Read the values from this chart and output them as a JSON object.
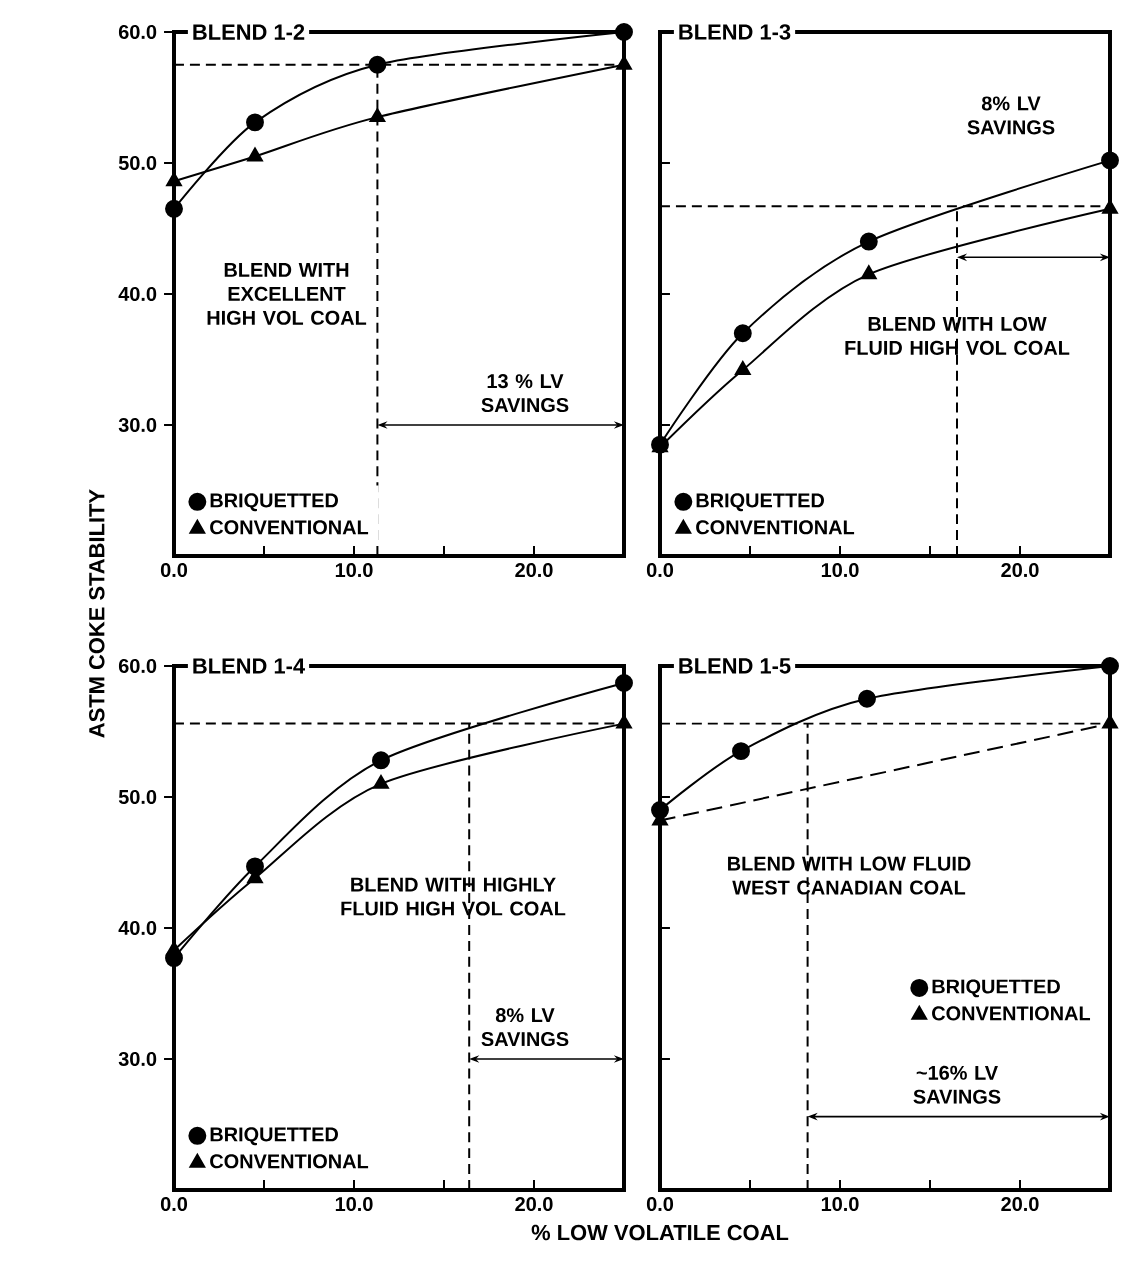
{
  "chart_data": [
    {
      "type": "line",
      "title": "BLEND 1-2",
      "x": [
        0,
        4.5,
        11.3,
        25
      ],
      "series": [
        {
          "name": "BRIQUETTED",
          "color": "#000000",
          "marker": "circle",
          "line_style": "solid",
          "values": [
            46.5,
            53.1,
            57.5,
            60
          ]
        },
        {
          "name": "CONVENTIONAL",
          "color": "#000000",
          "marker": "triangle",
          "line_style": "solid",
          "values": [
            48.6,
            50.5,
            53.5,
            57.5
          ]
        }
      ],
      "xlim": [
        0,
        25
      ],
      "ylim": [
        20,
        60
      ],
      "xticks": [
        {
          "value": 0,
          "label": "0.0"
        },
        {
          "value": 5,
          "label": null
        },
        {
          "value": 10,
          "label": "10.0"
        },
        {
          "value": 15,
          "label": null
        },
        {
          "value": 20,
          "label": "20.0"
        }
      ],
      "yticks": [
        {
          "value": 30,
          "label": "30.0"
        },
        {
          "value": 40,
          "label": "40.0"
        },
        {
          "value": 50,
          "label": "50.0"
        },
        {
          "value": 60,
          "label": "60.0"
        }
      ],
      "ref_lines": [
        {
          "axis": "y",
          "value": 57.5,
          "line_style": "dashed"
        },
        {
          "axis": "x",
          "value": 11.3,
          "line_style": "dashed"
        }
      ],
      "annotations": [
        "BLEND WITH EXCELLENT HIGH VOL COAL",
        "13 % LV SAVINGS"
      ],
      "legend": "bottom left"
    },
    {
      "type": "line",
      "title": "BLEND 1-3",
      "x": [
        0,
        4.6,
        11.6,
        25
      ],
      "series": [
        {
          "name": "BRIQUETTED",
          "color": "#000000",
          "marker": "circle",
          "line_style": "solid",
          "values": [
            28.5,
            37,
            44,
            50.2
          ]
        },
        {
          "name": "CONVENTIONAL",
          "color": "#000000",
          "marker": "triangle",
          "line_style": "solid",
          "values": [
            28.3,
            34.2,
            41.5,
            46.5
          ]
        }
      ],
      "xlim": [
        0,
        25
      ],
      "ylim": [
        20,
        60
      ],
      "xticks": [
        {
          "value": 0,
          "label": "0.0"
        },
        {
          "value": 5,
          "label": null
        },
        {
          "value": 10,
          "label": "10.0"
        },
        {
          "value": 15,
          "label": null
        },
        {
          "value": 20,
          "label": "20.0"
        }
      ],
      "yticks": [
        30,
        40,
        50,
        60
      ],
      "tick_labels": "x",
      "ref_lines": [
        {
          "axis": "y",
          "value": 46.7,
          "line_style": "dashed"
        },
        {
          "axis": "x",
          "value": 16.5,
          "line_style": "dashed"
        }
      ],
      "annotations": [
        "BLEND WITH LOW FLUID HIGH VOL COAL",
        "8% LV SAVINGS"
      ],
      "legend": "bottom left"
    },
    {
      "type": "line",
      "title": "BLEND 1-4",
      "xlabel": "% LOW VOLATILE COAL",
      "ylabel": "ASTM COKE STABILITY",
      "x": [
        0,
        4.5,
        11.5,
        25
      ],
      "series": [
        {
          "name": "BRIQUETTED",
          "color": "#000000",
          "marker": "circle",
          "line_style": "solid",
          "values": [
            37.7,
            44.7,
            52.8,
            58.7
          ]
        },
        {
          "name": "CONVENTIONAL",
          "color": "#000000",
          "marker": "triangle",
          "line_style": "solid",
          "values": [
            38.3,
            43.8,
            51,
            55.6
          ]
        }
      ],
      "xlim": [
        0,
        25
      ],
      "ylim": [
        20,
        60
      ],
      "xticks": [
        {
          "value": 0,
          "label": "0.0"
        },
        {
          "value": 5,
          "label": null
        },
        {
          "value": 10,
          "label": "10.0"
        },
        {
          "value": 15,
          "label": null
        },
        {
          "value": 20,
          "label": "20.0"
        }
      ],
      "yticks": [
        {
          "value": 30,
          "label": "30.0"
        },
        {
          "value": 40,
          "label": "40.0"
        },
        {
          "value": 50,
          "label": "50.0"
        },
        {
          "value": 60,
          "label": "60.0"
        }
      ],
      "ref_lines": [
        {
          "axis": "y",
          "value": 55.6,
          "line_style": "dashed"
        },
        {
          "axis": "x",
          "value": 16.4,
          "line_style": "dashed"
        }
      ],
      "annotations": [
        "BLEND WITH HIGHLY FLUID HIGH VOL COAL",
        "8% LV SAVINGS"
      ],
      "legend": "bottom left"
    },
    {
      "type": "line",
      "title": "BLEND 1-5",
      "x": [
        0,
        4.5,
        11.5,
        25
      ],
      "series": [
        {
          "name": "BRIQUETTED",
          "color": "#000000",
          "marker": "circle",
          "line_style": "solid",
          "values": [
            49,
            53.5,
            57.5,
            60
          ]
        },
        {
          "name": "CONVENTIONAL",
          "color": "#000000",
          "marker": "triangle",
          "line_style": "dashed",
          "x": [
            0,
            25
          ],
          "values": [
            48.2,
            55.6
          ]
        }
      ],
      "xlim": [
        0,
        25
      ],
      "ylim": [
        20,
        60
      ],
      "xticks": [
        {
          "value": 0,
          "label": "0.0"
        },
        {
          "value": 5,
          "label": null
        },
        {
          "value": 10,
          "label": "10.0"
        },
        {
          "value": 15,
          "label": null
        },
        {
          "value": 20,
          "label": "20.0"
        }
      ],
      "yticks": [
        30,
        40,
        50,
        60
      ],
      "tick_labels": "x",
      "ref_lines": [
        {
          "axis": "y",
          "value": 55.6,
          "line_style": "dashed"
        },
        {
          "axis": "x",
          "value": 8.2,
          "line_style": "dashed"
        }
      ],
      "annotations": [
        "BLEND WITH LOW FLUID WEST CANADIAN COAL",
        "~16% LV SAVINGS"
      ],
      "legend": "right"
    }
  ]
}
